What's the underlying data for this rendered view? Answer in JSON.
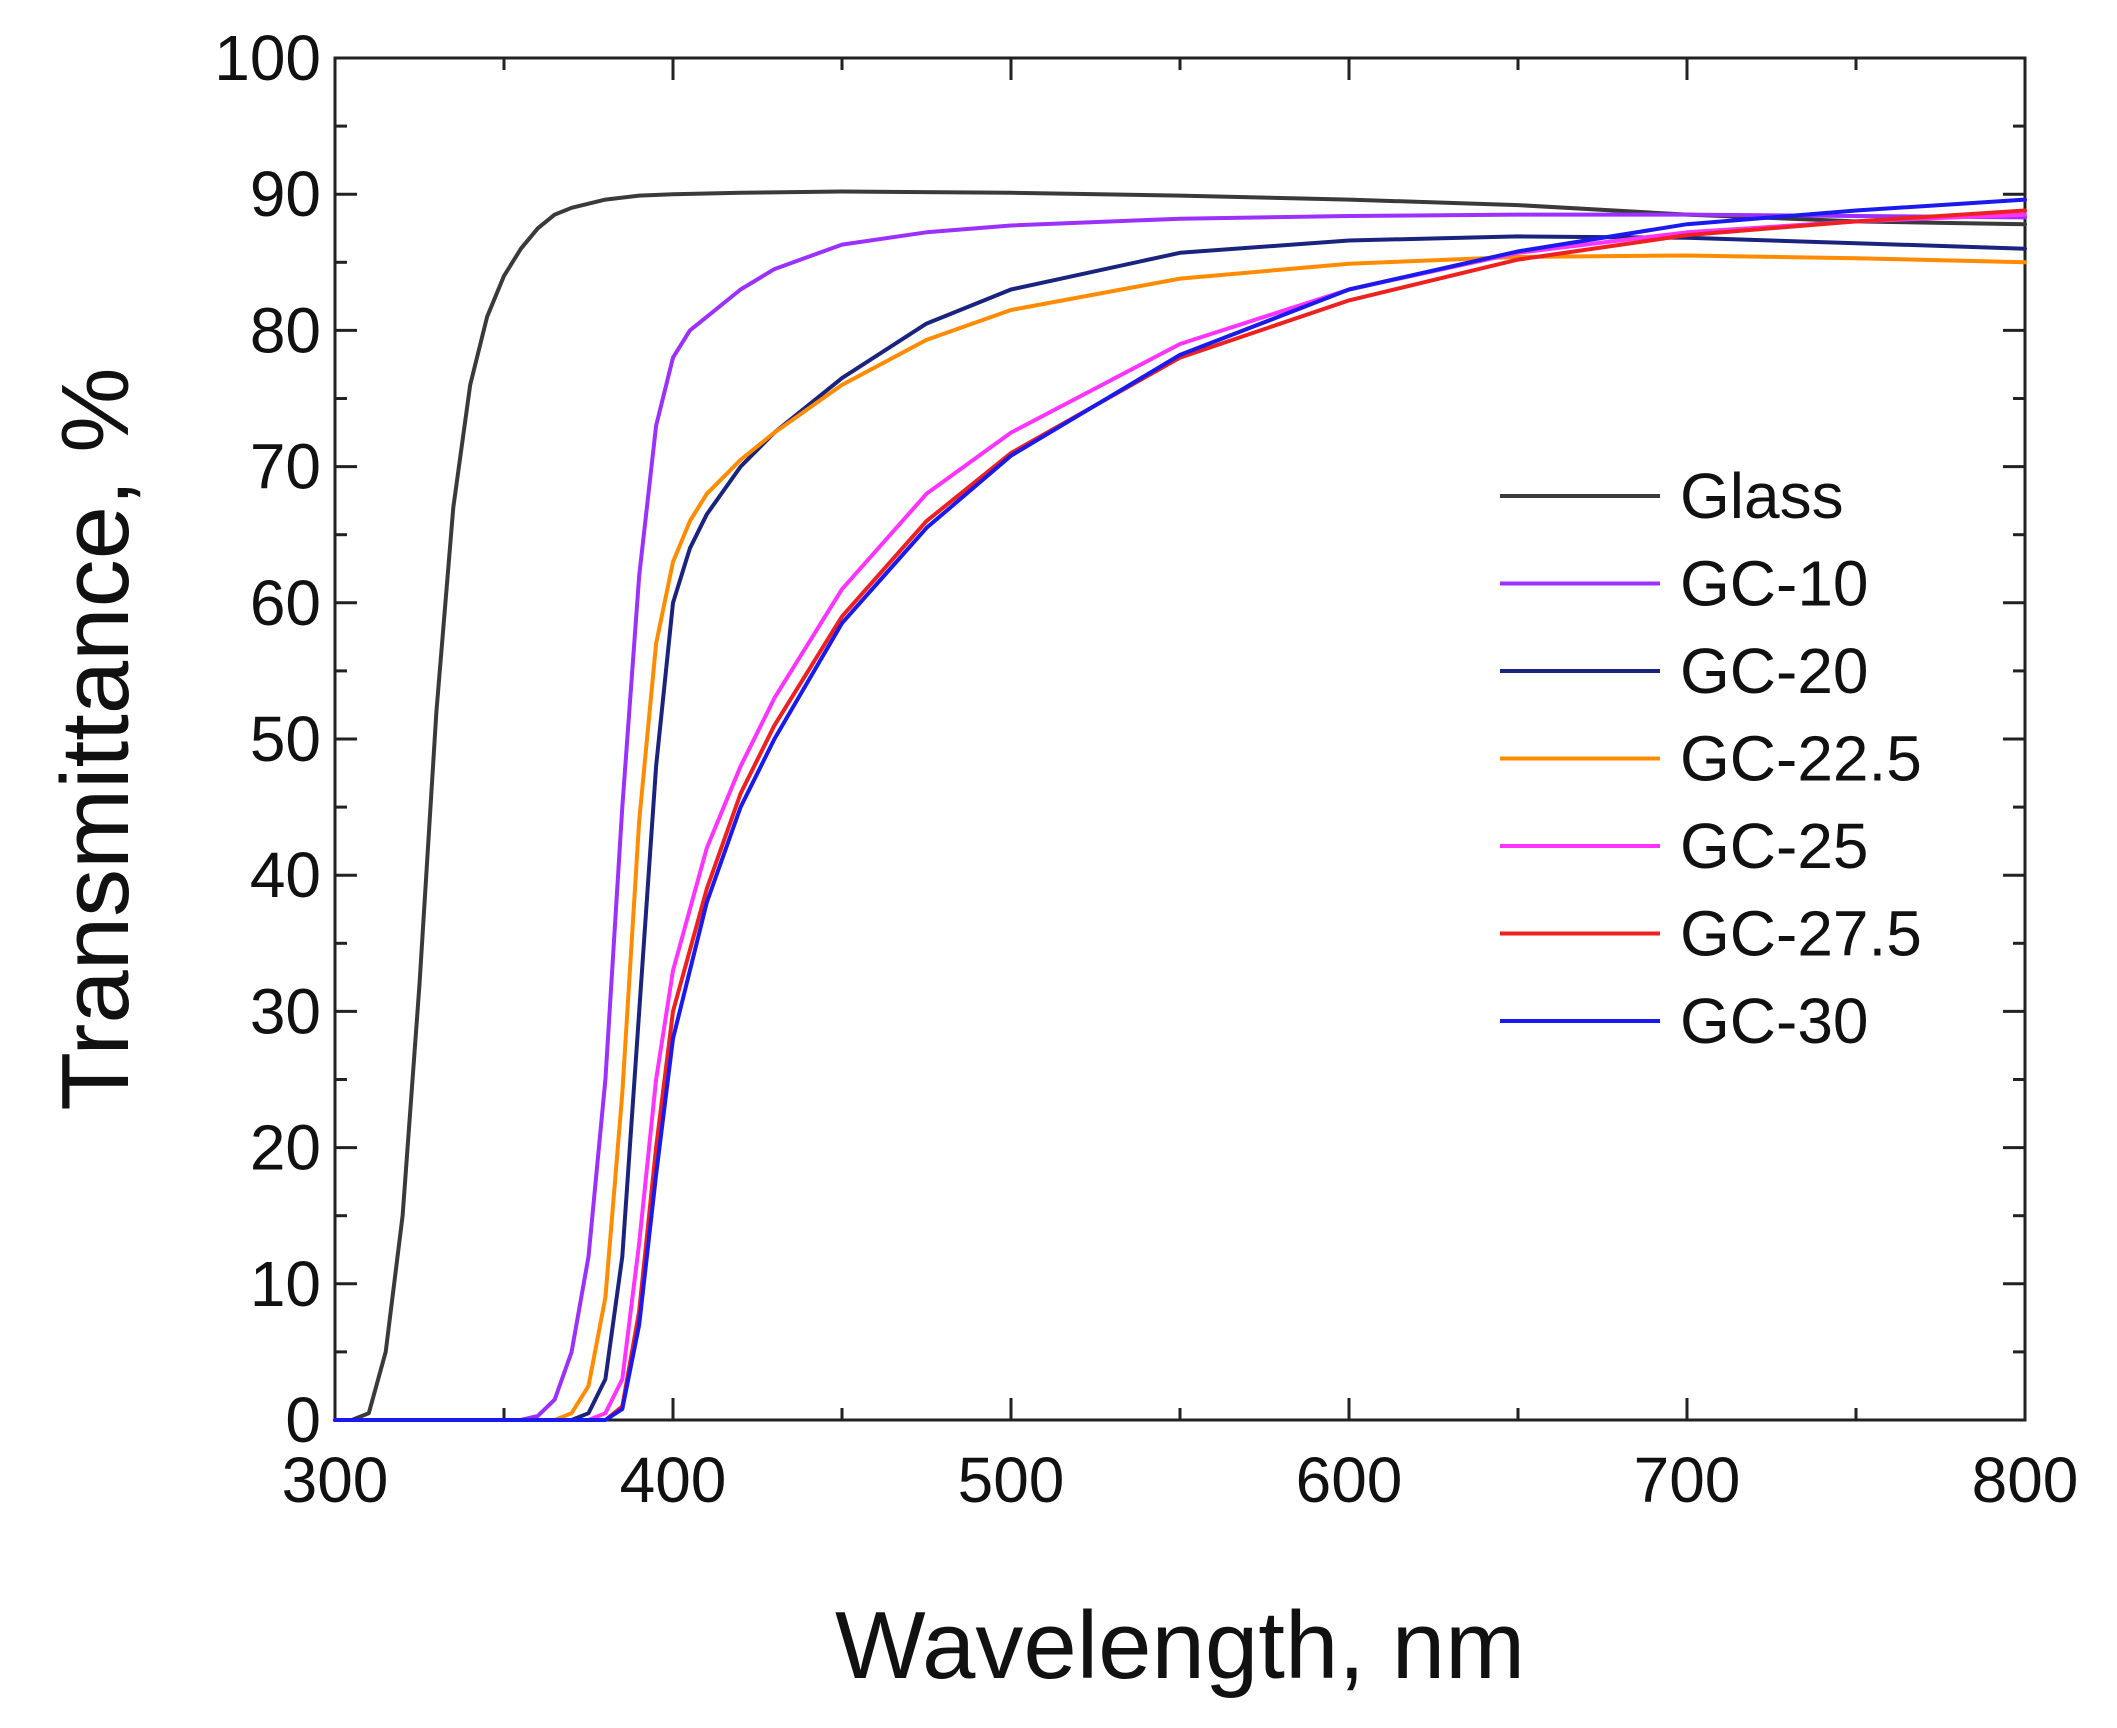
{
  "chart_data": {
    "type": "line",
    "title": "",
    "xlabel": "Wavelength, nm",
    "ylabel": "Transmittance, %",
    "xlim": [
      300,
      800
    ],
    "ylim": [
      0,
      100
    ],
    "xticks": [
      300,
      400,
      500,
      600,
      700,
      800
    ],
    "yticks": [
      0,
      10,
      20,
      30,
      40,
      50,
      60,
      70,
      80,
      90,
      100
    ],
    "grid": false,
    "legend_position": "right",
    "series": [
      {
        "name": "Glass",
        "color": "#3a3a3a",
        "x": [
          300,
          305,
          310,
          315,
          320,
          325,
          330,
          335,
          340,
          345,
          350,
          355,
          360,
          365,
          370,
          380,
          390,
          400,
          420,
          450,
          500,
          550,
          600,
          650,
          700,
          750,
          800
        ],
        "y": [
          0,
          0,
          0.5,
          5,
          15,
          32,
          52,
          67,
          76,
          81,
          84,
          86,
          87.5,
          88.5,
          89,
          89.6,
          89.9,
          90,
          90.1,
          90.2,
          90.1,
          89.9,
          89.6,
          89.2,
          88.5,
          88,
          87.8
        ]
      },
      {
        "name": "GC-10",
        "color": "#9b30ff",
        "x": [
          300,
          355,
          360,
          365,
          370,
          375,
          380,
          385,
          390,
          395,
          400,
          405,
          410,
          420,
          430,
          450,
          475,
          500,
          550,
          600,
          650,
          700,
          750,
          800
        ],
        "y": [
          0,
          0,
          0.3,
          1.5,
          5,
          12,
          25,
          45,
          62,
          73,
          78,
          80,
          81,
          83,
          84.5,
          86.3,
          87.2,
          87.7,
          88.2,
          88.4,
          88.5,
          88.5,
          88.4,
          88.3
        ]
      },
      {
        "name": "GC-20",
        "color": "#1a237e",
        "x": [
          300,
          370,
          375,
          380,
          385,
          390,
          395,
          400,
          405,
          410,
          420,
          430,
          450,
          475,
          500,
          550,
          600,
          650,
          700,
          750,
          800
        ],
        "y": [
          0,
          0,
          0.5,
          3,
          12,
          30,
          48,
          60,
          64,
          66.5,
          70,
          72.5,
          76.5,
          80.5,
          83,
          85.7,
          86.6,
          86.9,
          86.8,
          86.4,
          86
        ]
      },
      {
        "name": "GC-22.5",
        "color": "#ff8c00",
        "x": [
          300,
          365,
          370,
          375,
          380,
          385,
          390,
          395,
          400,
          405,
          410,
          420,
          430,
          450,
          475,
          500,
          550,
          600,
          650,
          700,
          750,
          800
        ],
        "y": [
          0,
          0,
          0.5,
          2.5,
          9,
          24,
          44,
          57,
          63,
          66,
          68,
          70.5,
          72.5,
          76,
          79.3,
          81.5,
          83.8,
          84.9,
          85.4,
          85.5,
          85.3,
          85
        ]
      },
      {
        "name": "GC-25",
        "color": "#ff33ff",
        "x": [
          300,
          375,
          380,
          385,
          390,
          395,
          400,
          410,
          420,
          430,
          450,
          475,
          500,
          550,
          600,
          650,
          700,
          750,
          800
        ],
        "y": [
          0,
          0,
          0.5,
          3,
          13,
          25,
          33,
          42,
          48,
          53,
          61,
          68,
          72.5,
          79,
          83,
          85.7,
          87.2,
          88,
          88.5
        ]
      },
      {
        "name": "GC-27.5",
        "color": "#ee2020",
        "x": [
          300,
          380,
          385,
          390,
          395,
          400,
          410,
          420,
          430,
          450,
          475,
          500,
          550,
          600,
          650,
          700,
          750,
          800
        ],
        "y": [
          0,
          0,
          1,
          8,
          20,
          30,
          39,
          46,
          51,
          59,
          66,
          71,
          78,
          82.2,
          85.2,
          87,
          88,
          88.8
        ]
      },
      {
        "name": "GC-30",
        "color": "#1a1aee",
        "x": [
          300,
          380,
          385,
          390,
          395,
          400,
          410,
          420,
          430,
          450,
          475,
          500,
          550,
          600,
          650,
          700,
          750,
          800
        ],
        "y": [
          0,
          0,
          0.8,
          7,
          18,
          28,
          38,
          45,
          50,
          58.5,
          65.5,
          70.8,
          78.2,
          83,
          85.8,
          87.8,
          88.8,
          89.6
        ]
      }
    ]
  }
}
